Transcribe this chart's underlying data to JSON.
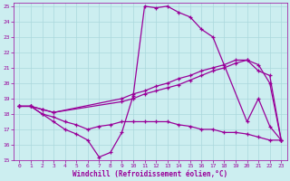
{
  "xlabel": "Windchill (Refroidissement éolien,°C)",
  "background_color": "#cceef0",
  "grid_color": "#aad8dc",
  "line_color": "#990099",
  "xlim": [
    -0.5,
    23.5
  ],
  "ylim": [
    15,
    25.2
  ],
  "xticks": [
    0,
    1,
    2,
    3,
    4,
    5,
    6,
    7,
    8,
    9,
    10,
    11,
    12,
    13,
    14,
    15,
    16,
    17,
    18,
    19,
    20,
    21,
    22,
    23
  ],
  "yticks": [
    15,
    16,
    17,
    18,
    19,
    20,
    21,
    22,
    23,
    24,
    25
  ],
  "curve1_x": [
    0,
    1,
    2,
    3,
    4,
    5,
    6,
    7,
    8,
    9,
    10,
    11,
    12,
    13,
    14,
    15,
    16,
    17,
    20,
    21,
    22,
    23
  ],
  "curve1_y": [
    18.5,
    18.5,
    18.0,
    17.5,
    17.0,
    16.7,
    16.3,
    15.2,
    15.5,
    16.8,
    19.2,
    25.0,
    24.9,
    25.0,
    24.6,
    24.3,
    23.5,
    23.0,
    17.5,
    19.0,
    17.2,
    16.3
  ],
  "curve2_x": [
    0,
    1,
    2,
    3,
    9,
    10,
    11,
    12,
    13,
    14,
    15,
    16,
    17,
    18,
    19,
    20,
    21,
    22,
    23
  ],
  "curve2_y": [
    18.5,
    18.5,
    18.3,
    18.1,
    19.0,
    19.3,
    19.5,
    19.8,
    20.0,
    20.3,
    20.5,
    20.8,
    21.0,
    21.2,
    21.5,
    21.5,
    20.8,
    20.5,
    16.3
  ],
  "curve3_x": [
    0,
    1,
    2,
    3,
    9,
    10,
    11,
    12,
    13,
    14,
    15,
    16,
    17,
    18,
    19,
    20,
    21,
    22,
    23
  ],
  "curve3_y": [
    18.5,
    18.5,
    18.3,
    18.1,
    18.8,
    19.0,
    19.3,
    19.5,
    19.7,
    19.9,
    20.2,
    20.5,
    20.8,
    21.0,
    21.3,
    21.5,
    21.2,
    20.0,
    16.3
  ],
  "curve_low_x": [
    0,
    1,
    2,
    3,
    4,
    5,
    6,
    7,
    8,
    9,
    10,
    11,
    12,
    13,
    14,
    15,
    16,
    17,
    18,
    19,
    20,
    21,
    22,
    23
  ],
  "curve_low_y": [
    18.5,
    18.5,
    18.0,
    17.8,
    17.5,
    17.3,
    17.0,
    17.2,
    17.3,
    17.5,
    17.5,
    17.5,
    17.5,
    17.5,
    17.3,
    17.2,
    17.0,
    17.0,
    16.8,
    16.8,
    16.7,
    16.5,
    16.3,
    16.3
  ]
}
